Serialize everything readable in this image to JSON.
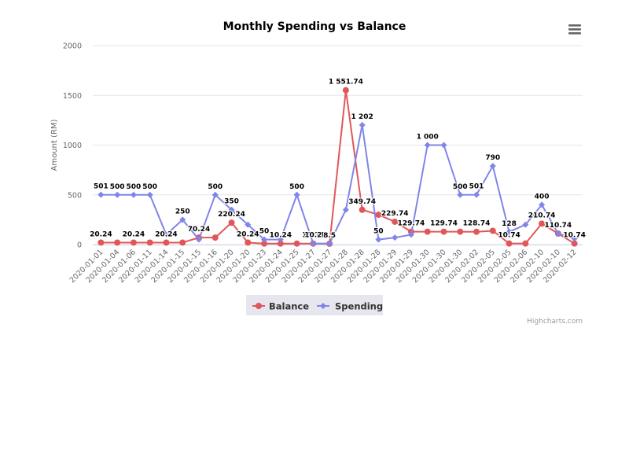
{
  "chart_data": {
    "type": "line",
    "title": "Monthly Spending vs Balance",
    "ylabel": "Amount (RM)",
    "xlabel": "",
    "ylim": [
      0,
      2000
    ],
    "yticks": [
      0,
      500,
      1000,
      1500,
      2000
    ],
    "grid": true,
    "legend_position": "bottom-center",
    "categories": [
      "2020-01-01",
      "2020-01-04",
      "2020-01-06",
      "2020-01-11",
      "2020-01-14",
      "2020-01-15",
      "2020-01-15",
      "2020-01-16",
      "2020-01-20",
      "2020-01-20",
      "2020-01-23",
      "2020-01-24",
      "2020-01-25",
      "2020-01-27",
      "2020-01-27",
      "2020-01-28",
      "2020-01-28",
      "2020-01-28",
      "2020-01-29",
      "2020-01-29",
      "2020-01-30",
      "2020-01-30",
      "2020-01-30",
      "2020-02-02",
      "2020-02-05",
      "2020-02-05",
      "2020-02-06",
      "2020-02-10",
      "2020-02-10",
      "2020-02-12"
    ],
    "series": [
      {
        "name": "Balance",
        "color": "#e15759",
        "values": [
          20.24,
          20.24,
          20.24,
          20.24,
          20.24,
          20.24,
          70.24,
          70.24,
          220.24,
          20.24,
          10.24,
          10.24,
          10.24,
          10.24,
          8.5,
          1551.74,
          349.74,
          299.74,
          229.74,
          129.74,
          129.74,
          129.74,
          129.74,
          128.74,
          138.74,
          10.74,
          10.74,
          210.74,
          110.74,
          10.74
        ],
        "labels": [
          "20.24",
          "",
          "20.24",
          "",
          "20.24",
          "",
          "70.24",
          "",
          "220.24",
          "20.24",
          "",
          "10.24",
          "",
          "10.24",
          "8.5",
          "1 551.74",
          "349.74",
          "",
          "229.74",
          "129.74",
          "",
          "129.74",
          "",
          "128.74",
          "",
          "10.74",
          "",
          "210.74",
          "110.74",
          "10.74"
        ]
      },
      {
        "name": "Spending",
        "color": "#8085e9",
        "values": [
          501,
          500,
          500,
          500,
          100,
          250,
          50,
          500,
          350,
          200,
          50,
          50,
          500,
          10.2,
          10,
          350,
          1202,
          50,
          70,
          100,
          1000,
          1000,
          500,
          501,
          790,
          128,
          200,
          400,
          110,
          60
        ],
        "labels": [
          "501",
          "500",
          "500",
          "500",
          "",
          "250",
          "",
          "500",
          "350",
          "",
          "50",
          "",
          "500",
          "10.2",
          "",
          "",
          "1 202",
          "50",
          "",
          "",
          "1 000",
          "",
          "500",
          "501",
          "790",
          "128",
          "",
          "400",
          "",
          ""
        ]
      }
    ]
  },
  "credits": "Highcharts.com",
  "menu_icon": "hamburger-menu-icon"
}
